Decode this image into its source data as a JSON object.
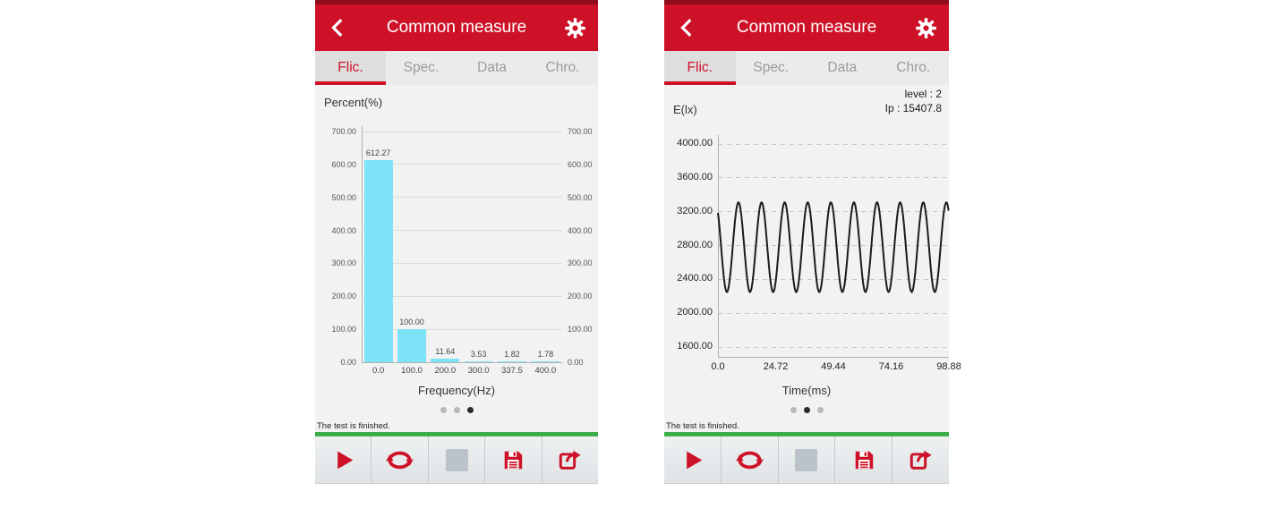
{
  "app": {
    "title": "Common measure",
    "tabs": [
      "Flic.",
      "Spec.",
      "Data",
      "Chro."
    ],
    "active_tab": "Flic.",
    "status_text": "The test is finished.",
    "colors": {
      "header_red": "#cd1228",
      "status_bar_red": "#8f0c1d",
      "tab_inactive_text": "#9b9b9b",
      "content_bg": "#f2f2f2",
      "bar_cyan": "#7fe3f7",
      "progress_green": "#3bae49",
      "stop_gray": "#b9c3c9",
      "wave_black": "#1b1b1b"
    },
    "header_icons": [
      "back-chevron-icon",
      "gear-icon"
    ]
  },
  "screens": [
    {
      "name": "flicker-frequency-spectrum",
      "pager": {
        "count": 3,
        "active": 2
      }
    },
    {
      "name": "flicker-waveform",
      "pager": {
        "count": 3,
        "active": 1
      }
    }
  ],
  "toolbar": {
    "buttons": [
      {
        "name": "play",
        "icon": "play-icon",
        "enabled": true
      },
      {
        "name": "repeat",
        "icon": "repeat-icon",
        "enabled": true
      },
      {
        "name": "stop",
        "icon": "stop-icon",
        "enabled": false
      },
      {
        "name": "save",
        "icon": "save-icon",
        "enabled": true
      },
      {
        "name": "export",
        "icon": "share-icon",
        "enabled": true
      }
    ]
  },
  "chart_data": [
    {
      "type": "bar",
      "title": "Percent(%)",
      "xlabel": "Frequency(Hz)",
      "categories": [
        "0.0",
        "100.0",
        "200.0",
        "300.0",
        "337.5",
        "400.0"
      ],
      "values": [
        612.27,
        100.0,
        11.64,
        3.53,
        1.82,
        1.78
      ],
      "value_labels": [
        "612.27",
        "100.00",
        "11.64",
        "3.53",
        "1.82",
        "1.78"
      ],
      "ylim": [
        0,
        700
      ],
      "y_ticks": [
        "700.00",
        "600.00",
        "500.00",
        "400.00",
        "300.00",
        "200.00",
        "100.00",
        "0.00"
      ],
      "y_labels_both_sides": true,
      "grid": "solid",
      "bar_color": "#7fe3f7"
    },
    {
      "type": "line",
      "title": "E(lx)",
      "xlabel": "Time(ms)",
      "annotations": [
        "level : 2",
        "Ip : 15407.8"
      ],
      "xlim": [
        0,
        98.88
      ],
      "ylim": [
        1600,
        4000
      ],
      "x_ticks": [
        "0.0",
        "24.72",
        "49.44",
        "74.16",
        "98.88"
      ],
      "x_tick_values": [
        0,
        24.72,
        49.44,
        74.16,
        98.88
      ],
      "y_ticks": [
        "4000.00",
        "3600.00",
        "3200.00",
        "2800.00",
        "2400.00",
        "2000.00",
        "1600.00"
      ],
      "grid": "dashed",
      "line_color": "#1b1b1b",
      "waveform": {
        "model": "cosine",
        "mean": 2780,
        "amplitude": 530,
        "period_ms": 9.888,
        "phase_deg": 40,
        "t_start": 0,
        "t_end": 98.88
      }
    }
  ]
}
